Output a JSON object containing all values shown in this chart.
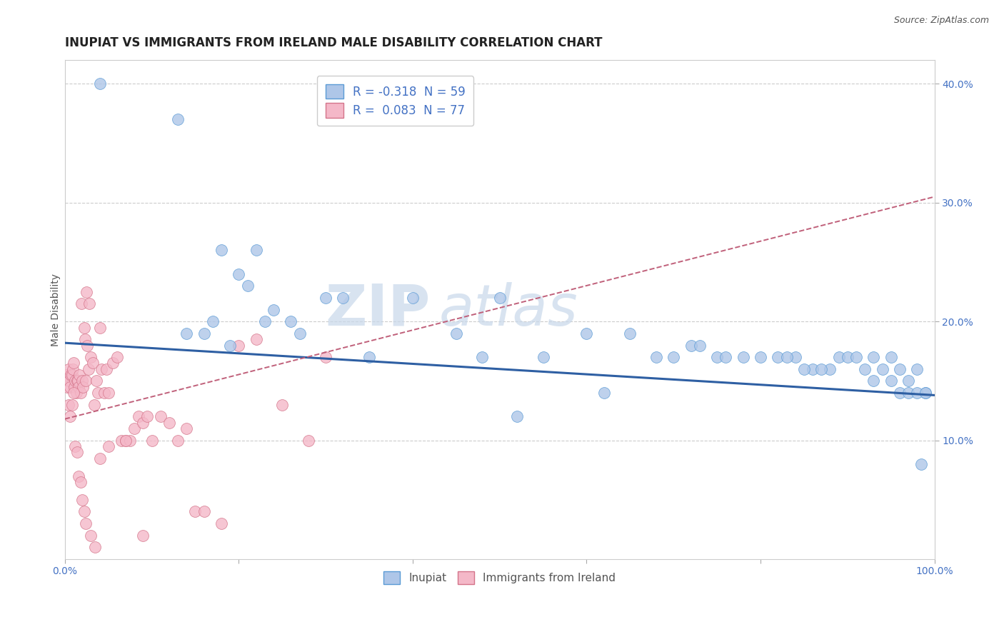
{
  "title": "INUPIAT VS IMMIGRANTS FROM IRELAND MALE DISABILITY CORRELATION CHART",
  "source": "Source: ZipAtlas.com",
  "ylabel": "Male Disability",
  "watermark_zip": "ZIP",
  "watermark_atlas": "atlas",
  "legend_r1": "R = -0.318  N = 59",
  "legend_r2": "R =  0.083  N = 77",
  "inupiat_x": [
    0.04,
    0.13,
    0.18,
    0.2,
    0.21,
    0.22,
    0.24,
    0.26,
    0.3,
    0.32,
    0.35,
    0.4,
    0.5,
    0.55,
    0.6,
    0.62,
    0.65,
    0.7,
    0.72,
    0.75,
    0.78,
    0.8,
    0.82,
    0.84,
    0.86,
    0.88,
    0.89,
    0.9,
    0.91,
    0.92,
    0.93,
    0.94,
    0.95,
    0.96,
    0.97,
    0.98,
    0.99,
    0.14,
    0.16,
    0.17,
    0.19,
    0.23,
    0.27,
    0.45,
    0.48,
    0.52,
    0.68,
    0.73,
    0.76,
    0.83,
    0.85,
    0.87,
    0.93,
    0.95,
    0.96,
    0.97,
    0.98,
    0.99,
    0.985
  ],
  "inupiat_y": [
    0.4,
    0.37,
    0.26,
    0.24,
    0.23,
    0.26,
    0.21,
    0.2,
    0.22,
    0.22,
    0.17,
    0.22,
    0.22,
    0.17,
    0.19,
    0.14,
    0.19,
    0.17,
    0.18,
    0.17,
    0.17,
    0.17,
    0.17,
    0.17,
    0.16,
    0.16,
    0.17,
    0.17,
    0.17,
    0.16,
    0.17,
    0.16,
    0.17,
    0.16,
    0.15,
    0.16,
    0.14,
    0.19,
    0.19,
    0.2,
    0.18,
    0.2,
    0.19,
    0.19,
    0.17,
    0.12,
    0.17,
    0.18,
    0.17,
    0.17,
    0.16,
    0.16,
    0.15,
    0.15,
    0.14,
    0.14,
    0.14,
    0.14,
    0.08
  ],
  "ireland_x": [
    0.002,
    0.003,
    0.004,
    0.005,
    0.006,
    0.007,
    0.008,
    0.009,
    0.01,
    0.011,
    0.012,
    0.013,
    0.014,
    0.015,
    0.016,
    0.017,
    0.018,
    0.019,
    0.02,
    0.021,
    0.022,
    0.023,
    0.024,
    0.025,
    0.026,
    0.027,
    0.028,
    0.03,
    0.032,
    0.034,
    0.036,
    0.038,
    0.04,
    0.042,
    0.045,
    0.048,
    0.05,
    0.055,
    0.06,
    0.065,
    0.07,
    0.075,
    0.08,
    0.085,
    0.09,
    0.095,
    0.1,
    0.11,
    0.12,
    0.13,
    0.14,
    0.15,
    0.16,
    0.18,
    0.2,
    0.22,
    0.25,
    0.28,
    0.3,
    0.004,
    0.006,
    0.008,
    0.01,
    0.012,
    0.014,
    0.016,
    0.018,
    0.02,
    0.022,
    0.024,
    0.03,
    0.035,
    0.04,
    0.05,
    0.07,
    0.09
  ],
  "ireland_y": [
    0.155,
    0.145,
    0.16,
    0.15,
    0.145,
    0.155,
    0.155,
    0.16,
    0.165,
    0.145,
    0.15,
    0.14,
    0.15,
    0.15,
    0.145,
    0.155,
    0.14,
    0.215,
    0.15,
    0.145,
    0.195,
    0.185,
    0.15,
    0.225,
    0.18,
    0.16,
    0.215,
    0.17,
    0.165,
    0.13,
    0.15,
    0.14,
    0.195,
    0.16,
    0.14,
    0.16,
    0.14,
    0.165,
    0.17,
    0.1,
    0.1,
    0.1,
    0.11,
    0.12,
    0.115,
    0.12,
    0.1,
    0.12,
    0.115,
    0.1,
    0.11,
    0.04,
    0.04,
    0.03,
    0.18,
    0.185,
    0.13,
    0.1,
    0.17,
    0.13,
    0.12,
    0.13,
    0.14,
    0.095,
    0.09,
    0.07,
    0.065,
    0.05,
    0.04,
    0.03,
    0.02,
    0.01,
    0.085,
    0.095,
    0.1,
    0.02
  ],
  "inupiat_line_x": [
    0.0,
    1.0
  ],
  "inupiat_line_y": [
    0.182,
    0.138
  ],
  "ireland_line_x": [
    0.0,
    1.0
  ],
  "ireland_line_y": [
    0.118,
    0.305
  ],
  "xlim": [
    0.0,
    1.0
  ],
  "ylim": [
    0.0,
    0.42
  ],
  "yticks": [
    0.1,
    0.2,
    0.3,
    0.4
  ],
  "ytick_labels": [
    "10.0%",
    "20.0%",
    "30.0%",
    "40.0%"
  ],
  "xticks": [
    0.0,
    0.2,
    0.4,
    0.6,
    0.8,
    1.0
  ],
  "xtick_left_label": "0.0%",
  "xtick_right_label": "100.0%",
  "grid_color": "#cccccc",
  "inupiat_dot_color": "#aec6e8",
  "inupiat_dot_edge": "#5b9bd5",
  "ireland_dot_color": "#f4b8c8",
  "ireland_dot_edge": "#d4748a",
  "inupiat_line_color": "#2e5fa3",
  "ireland_line_color": "#c0607a",
  "title_fontsize": 12,
  "label_fontsize": 10,
  "tick_fontsize": 10,
  "tick_color": "#4472c4",
  "source_color": "#555555"
}
